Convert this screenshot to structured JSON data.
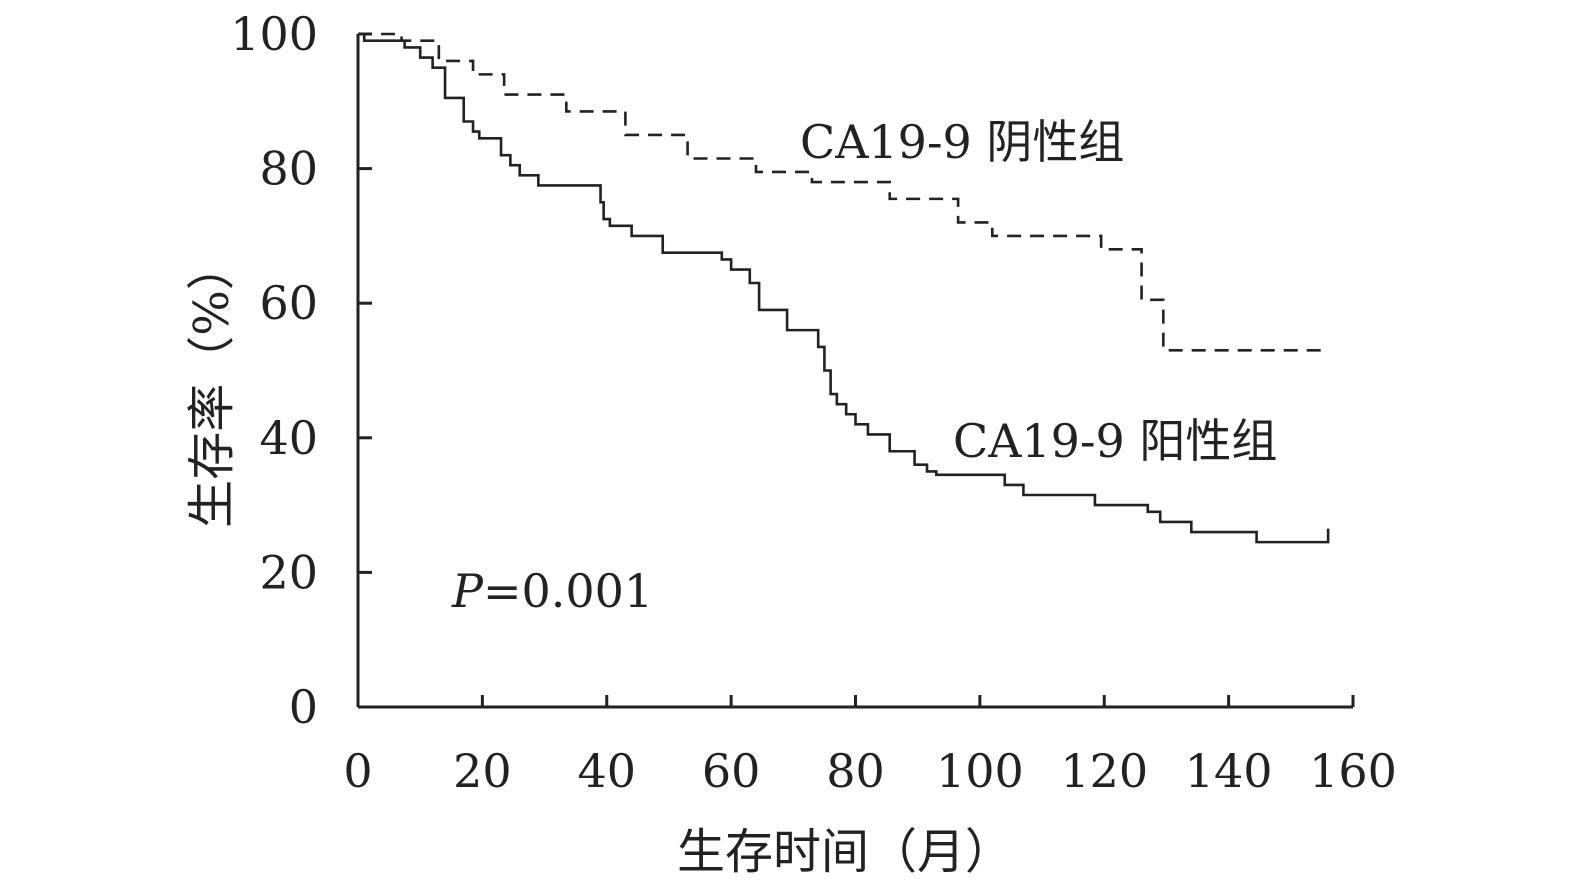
{
  "chart_data": {
    "type": "line",
    "xlabel": "生存时间（月）",
    "ylabel": "生存率（%）",
    "xlim": [
      0,
      160
    ],
    "ylim": [
      0,
      100
    ],
    "xticks": [
      0,
      20,
      40,
      60,
      80,
      100,
      120,
      140,
      160
    ],
    "yticks": [
      0,
      20,
      40,
      60,
      80,
      100
    ],
    "annotation": {
      "prefix": "P",
      "text": "=0.001"
    },
    "grid": false,
    "series": [
      {
        "name": "CA19-9 阴性组",
        "style": "dashed",
        "color": "#222222",
        "x": [
          0,
          2,
          7,
          13,
          18.5,
          23.5,
          33.5,
          43,
          53,
          64,
          73,
          85.5,
          96.5,
          102,
          119.5,
          126,
          129.5,
          156
        ],
        "y": [
          100,
          100,
          99,
          96,
          94,
          91,
          88.5,
          85,
          81.5,
          79.5,
          78,
          75.5,
          72,
          70,
          68,
          60.5,
          53,
          53
        ]
      },
      {
        "name": "CA19-9 阳性组",
        "style": "solid",
        "color": "#222222",
        "x": [
          0,
          1,
          7.5,
          10,
          12,
          14,
          17,
          18.5,
          19.5,
          23,
          24.5,
          26,
          29,
          39,
          39.5,
          40.5,
          44,
          49,
          58.5,
          60,
          63,
          64.5,
          69,
          74,
          75,
          76,
          77,
          78.5,
          80,
          82,
          85.5,
          89.5,
          91.5,
          93,
          104,
          107,
          118.5,
          127,
          129,
          134,
          144.5,
          156
        ],
        "y": [
          100,
          99,
          98,
          96.5,
          95,
          90.5,
          87,
          85.5,
          84.5,
          82,
          80.5,
          79,
          77.5,
          75,
          72.5,
          71.5,
          70,
          67.5,
          66.5,
          65,
          63,
          59,
          56,
          53.5,
          50,
          46.5,
          45,
          43.5,
          42,
          40.5,
          38,
          36,
          35,
          34.5,
          33,
          31.5,
          30,
          29,
          27.5,
          26,
          24.5,
          26.5
        ]
      }
    ],
    "series_labels": [
      "CA19-9 阴性组",
      "CA19-9 阳性组"
    ]
  }
}
